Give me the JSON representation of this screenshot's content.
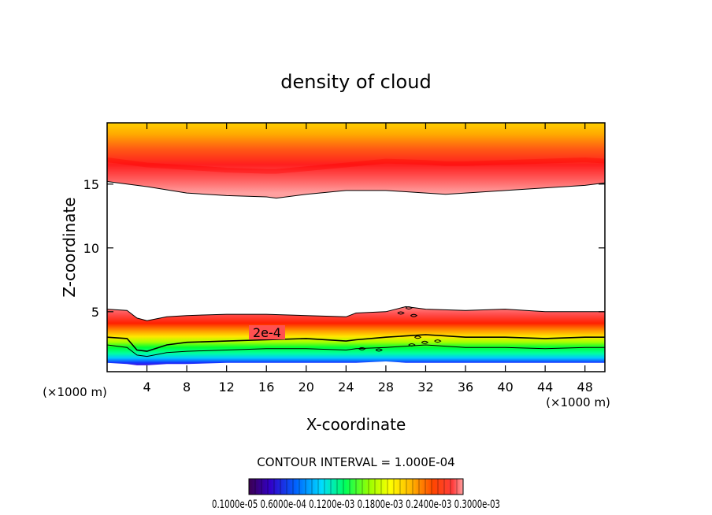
{
  "chart_data": {
    "type": "contour",
    "title": "density of cloud",
    "xlabel": "X-coordinate",
    "ylabel": "Z-coordinate",
    "x_unit": "(×1000 m)",
    "z_unit": "(×1000 m)",
    "xlim": [
      0,
      50
    ],
    "ylim": [
      0.3,
      19.8
    ],
    "x_ticks": [
      4,
      8,
      12,
      16,
      20,
      24,
      28,
      32,
      36,
      40,
      44,
      48
    ],
    "y_ticks": [
      5,
      10,
      15
    ],
    "contour_interval_text": "CONTOUR INTERVAL = 1.000E-04",
    "contour_label": "2e-4",
    "colorbar_labels_text": "0.1000e-05 0.6000e-04 0.1200e-03 0.1800e-03 0.2400e-03 0.3000e-03",
    "colorbar_levels": [
      1e-06,
      6e-05,
      0.00012,
      0.00018,
      0.00024,
      0.0003
    ],
    "upper_cloud": {
      "x": [
        0,
        4,
        8,
        12,
        16,
        17,
        20,
        24,
        28,
        32,
        34,
        36,
        40,
        44,
        48,
        50
      ],
      "base": [
        15.2,
        14.8,
        14.3,
        14.1,
        14.0,
        13.9,
        14.2,
        14.5,
        14.5,
        14.3,
        14.2,
        14.3,
        14.5,
        14.7,
        14.9,
        15.1
      ],
      "max_level": [
        16.9,
        16.5,
        16.3,
        16.1,
        16.0,
        16.0,
        16.2,
        16.5,
        16.8,
        16.7,
        16.6,
        16.6,
        16.7,
        16.8,
        16.9,
        16.8
      ],
      "top": 19.8
    },
    "lower_cloud": {
      "x": [
        0,
        2,
        3,
        4,
        6,
        8,
        12,
        16,
        20,
        24,
        25,
        28,
        30,
        32,
        36,
        40,
        44,
        48,
        50
      ],
      "top": [
        5.2,
        5.1,
        4.5,
        4.3,
        4.6,
        4.7,
        4.8,
        4.8,
        4.7,
        4.6,
        4.9,
        5.0,
        5.4,
        5.2,
        5.1,
        5.2,
        5.0,
        5.0,
        5.0
      ],
      "level_2e4": [
        3.0,
        2.9,
        2.0,
        1.9,
        2.4,
        2.6,
        2.7,
        2.8,
        2.9,
        2.7,
        2.8,
        3.0,
        3.1,
        3.2,
        3.0,
        3.0,
        2.9,
        3.0,
        3.0
      ],
      "green_top": [
        2.4,
        2.2,
        1.6,
        1.5,
        1.8,
        1.9,
        2.0,
        2.1,
        2.1,
        2.0,
        2.1,
        2.2,
        2.3,
        2.4,
        2.2,
        2.2,
        2.1,
        2.2,
        2.2
      ],
      "base": [
        1.0,
        0.9,
        0.8,
        0.8,
        0.9,
        0.9,
        1.0,
        1.0,
        1.0,
        1.0,
        1.0,
        1.1,
        1.0,
        1.0,
        1.0,
        1.0,
        1.0,
        1.0,
        1.0
      ]
    }
  }
}
